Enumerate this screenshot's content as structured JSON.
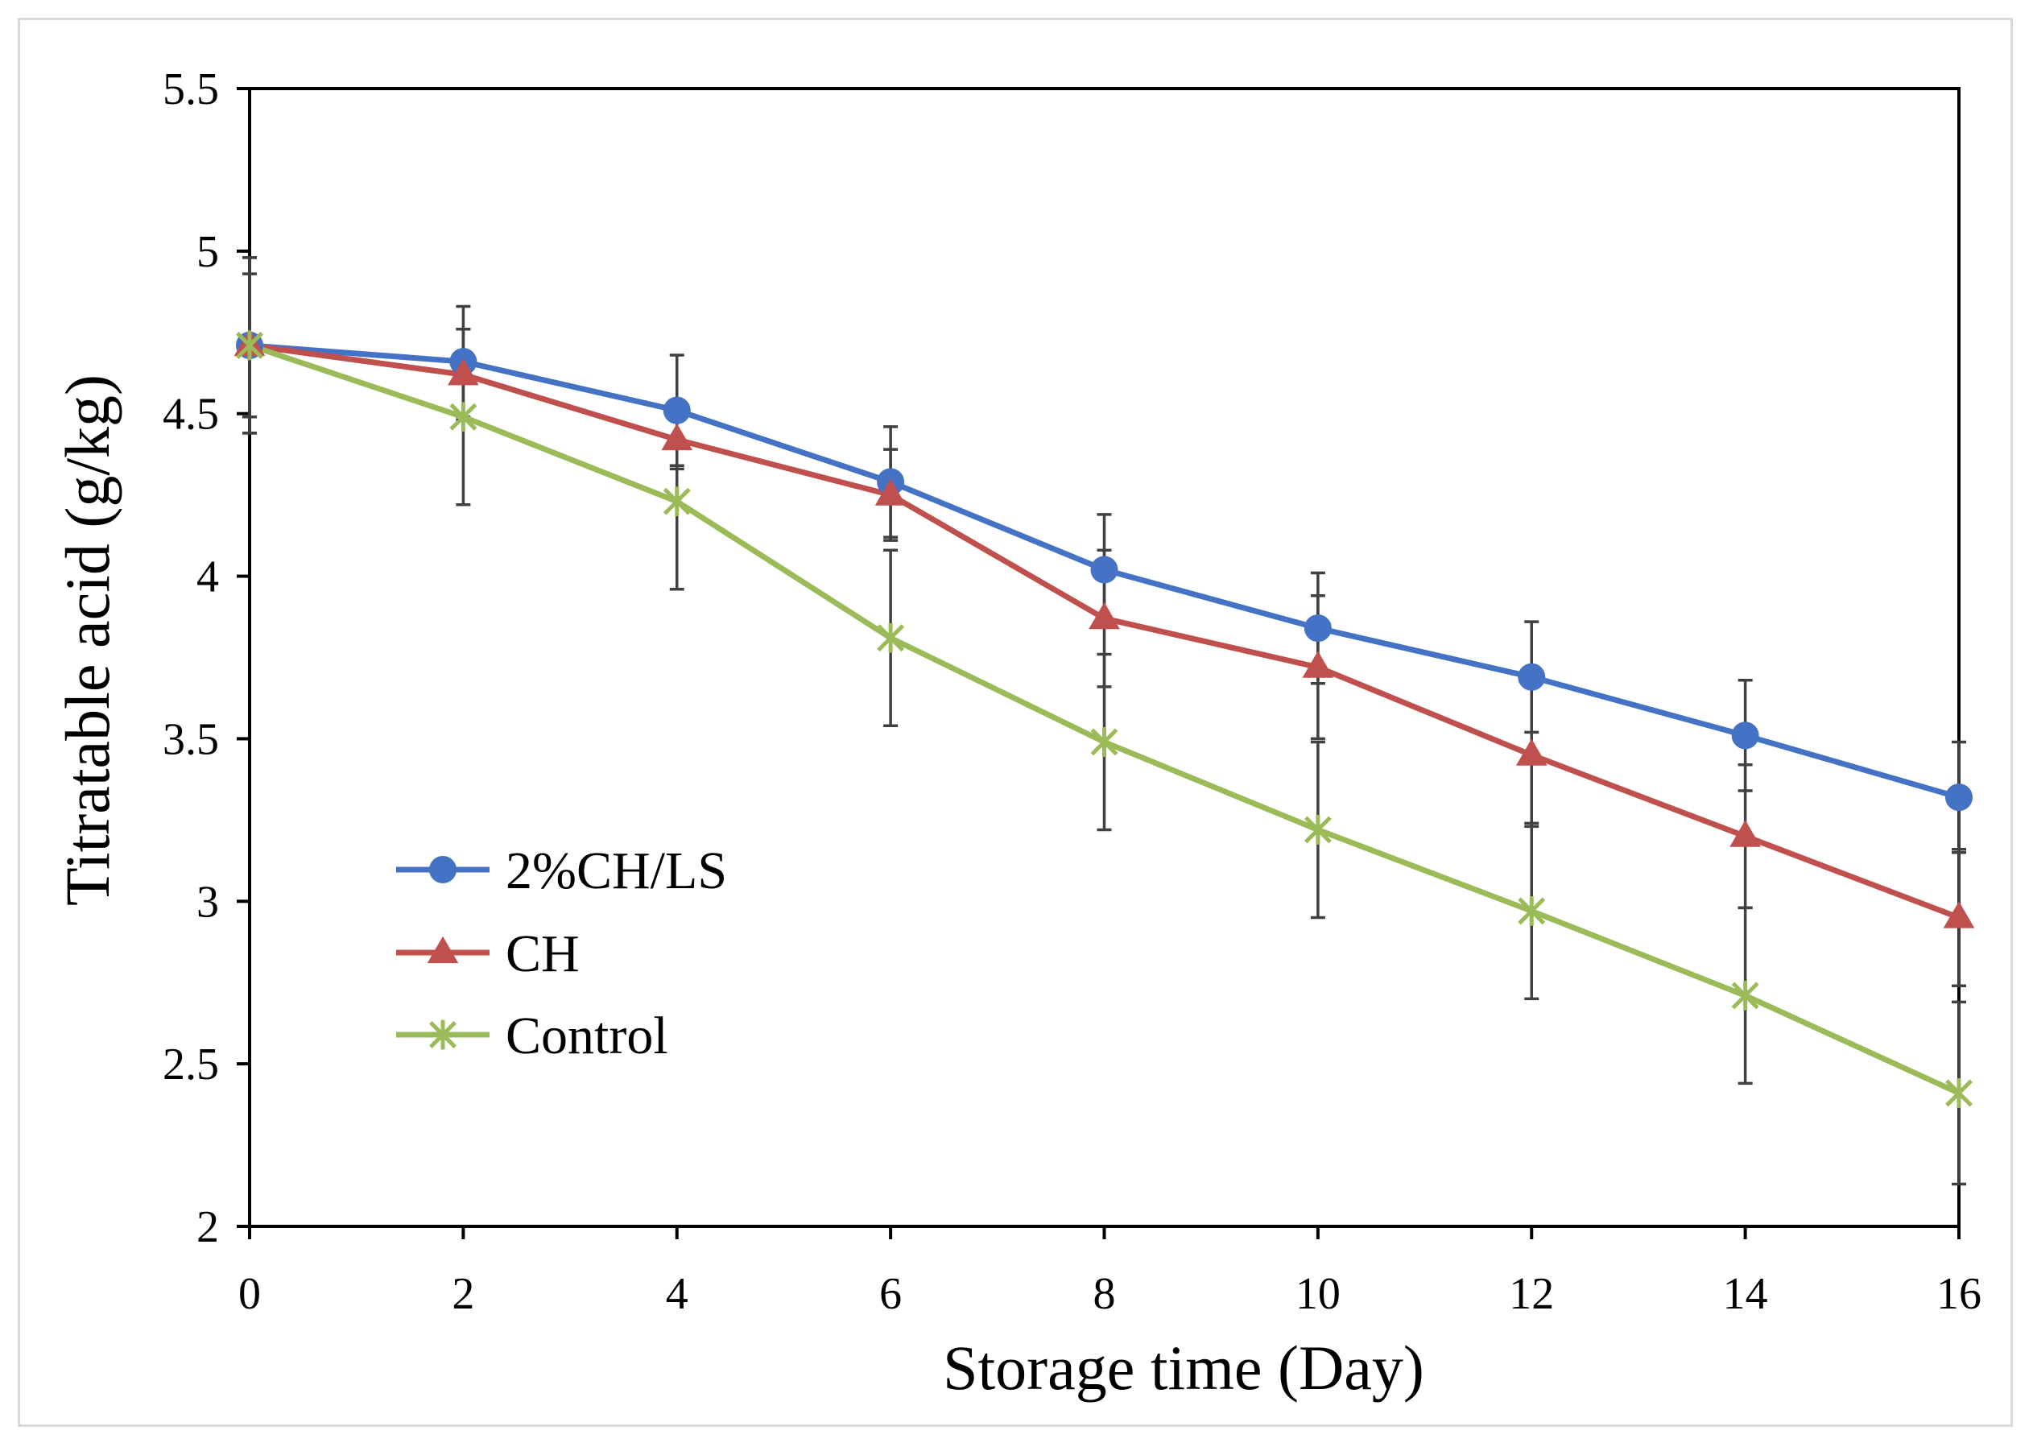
{
  "chart_data": {
    "type": "line",
    "title": "",
    "xlabel": "Storage time (Day)",
    "ylabel": "Titratable acid (g/kg)",
    "x": [
      0,
      2,
      4,
      6,
      8,
      10,
      12,
      14,
      16
    ],
    "x_ticks": [
      "0",
      "2",
      "4",
      "6",
      "8",
      "10",
      "12",
      "14",
      "16"
    ],
    "y_ticks": [
      "2",
      "2.5",
      "3",
      "3.5",
      "4",
      "4.5",
      "5",
      "5.5"
    ],
    "xlim": [
      0,
      16
    ],
    "ylim": [
      2,
      5.5
    ],
    "grid": false,
    "legend_position": "bottom-left",
    "error_bars": true,
    "series": [
      {
        "name": "2%CH/LS",
        "color": "#4472c4",
        "marker": "circle",
        "values": [
          4.71,
          4.66,
          4.51,
          4.29,
          4.02,
          3.84,
          3.69,
          3.51,
          3.32
        ],
        "errors": [
          0.27,
          0.17,
          0.17,
          0.17,
          0.17,
          0.17,
          0.17,
          0.17,
          0.17
        ]
      },
      {
        "name": "CH",
        "color": "#c0504d",
        "marker": "triangle",
        "values": [
          4.71,
          4.62,
          4.42,
          4.25,
          3.87,
          3.72,
          3.45,
          3.2,
          2.95
        ],
        "errors": [
          0.22,
          0.14,
          0.09,
          0.14,
          0.21,
          0.22,
          0.22,
          0.22,
          0.21
        ]
      },
      {
        "name": "Control",
        "color": "#9bbb59",
        "marker": "x-star",
        "values": [
          4.71,
          4.49,
          4.23,
          3.81,
          3.49,
          3.22,
          2.97,
          2.71,
          2.41
        ],
        "errors": [
          0.27,
          0.27,
          0.27,
          0.27,
          0.27,
          0.27,
          0.27,
          0.27,
          0.28
        ]
      }
    ]
  }
}
